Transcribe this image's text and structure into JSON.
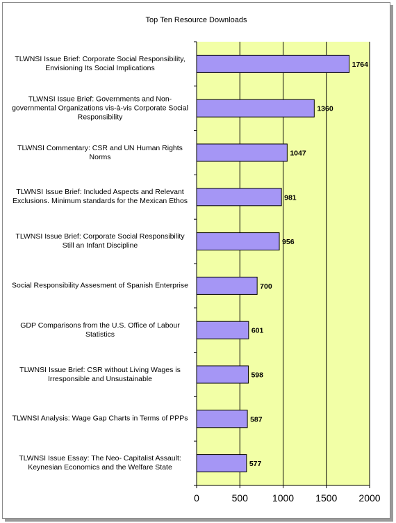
{
  "chart_data": {
    "type": "bar",
    "orientation": "horizontal",
    "title": "Top Ten Resource Downloads",
    "xlabel": "",
    "ylabel": "",
    "xlim": [
      0,
      2000
    ],
    "ticks": [
      "0",
      "500",
      "1000",
      "1500",
      "2000"
    ],
    "grid": "vertical",
    "legend": "none",
    "categories": [
      [
        "TLWNSI Issue Brief:  Corporate Social Responsibility,",
        "Envisioning Its Social Implications"
      ],
      [
        "TLWNSI Issue Brief:  Governments and Non-",
        "governmental Organizations vis-à-vis Corporate Social",
        "Responsibility"
      ],
      [
        "TLWNSI Commentary: CSR and UN Human Rights",
        "Norms"
      ],
      [
        "TLWNSI Issue Brief:  Included Aspects and Relevant",
        "Exclusions.  Minimum standards for the Mexican Ethos"
      ],
      [
        "TLWNSI Issue Brief:  Corporate Social Responsibility",
        "Still an Infant Discipline"
      ],
      [
        "Social Responsibility Assesment of Spanish Enterprise"
      ],
      [
        "GDP Comparisons from the U.S. Office of Labour",
        "Statistics"
      ],
      [
        "TLWNSI Issue Brief: CSR without Living Wages is",
        "Irresponsible and Unsustainable"
      ],
      [
        "TLWNSI Analysis: Wage Gap Charts in Terms of PPPs"
      ],
      [
        "TLWNSI Issue Essay:  The Neo- Capitalist Assault:",
        "Keynesian Economics and the Welfare State"
      ]
    ],
    "values": [
      1764,
      1360,
      1047,
      981,
      956,
      700,
      601,
      598,
      587,
      577
    ],
    "colors": {
      "plot_bg": "#F2FFA6",
      "bar": "#A596F5",
      "bar_stroke": "#000000",
      "grid": "#000000"
    }
  }
}
